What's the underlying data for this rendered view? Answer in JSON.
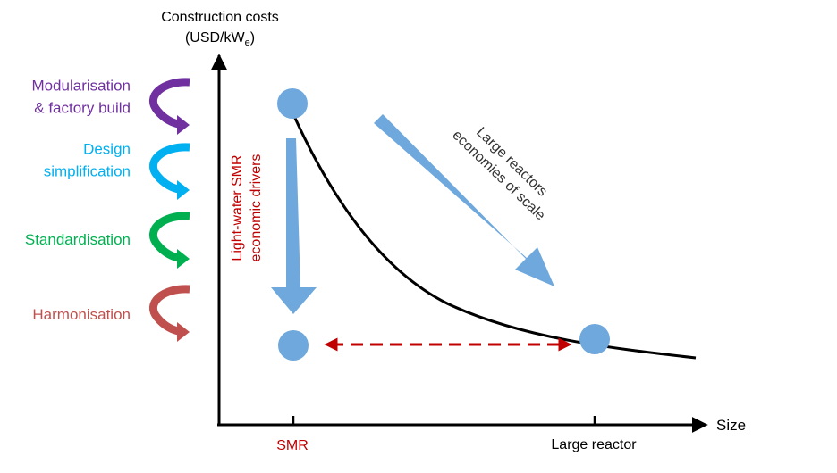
{
  "axes": {
    "y_title_line1": "Construction costs",
    "y_title_line2": "(USD/kW",
    "y_title_sub": "e",
    "y_title_close": ")",
    "x_title": "Size",
    "x_tick_smr": "SMR",
    "x_tick_large": "Large reactor"
  },
  "drivers": [
    {
      "lines": [
        "Modularisation",
        "& factory build"
      ],
      "color": "#7030a0"
    },
    {
      "lines": [
        "Design",
        "simplification"
      ],
      "color": "#00b0f0"
    },
    {
      "lines": [
        "Standardisation"
      ],
      "color": "#00b050"
    },
    {
      "lines": [
        "Harmonisation"
      ],
      "color": "#c0504d"
    }
  ],
  "annotations": {
    "smr_drivers_line1": "Light-water SMR",
    "smr_drivers_line2": "economic drivers",
    "large_scale_line1": "Large reactors",
    "large_scale_line2": "economies of scale"
  },
  "colors": {
    "axis": "#000000",
    "point": "#6fa8dc",
    "arrow": "#6fa8dc",
    "dashed_arrow": "#c00000",
    "smr_label": "#c00000",
    "driver_annotation": "#c00000"
  }
}
